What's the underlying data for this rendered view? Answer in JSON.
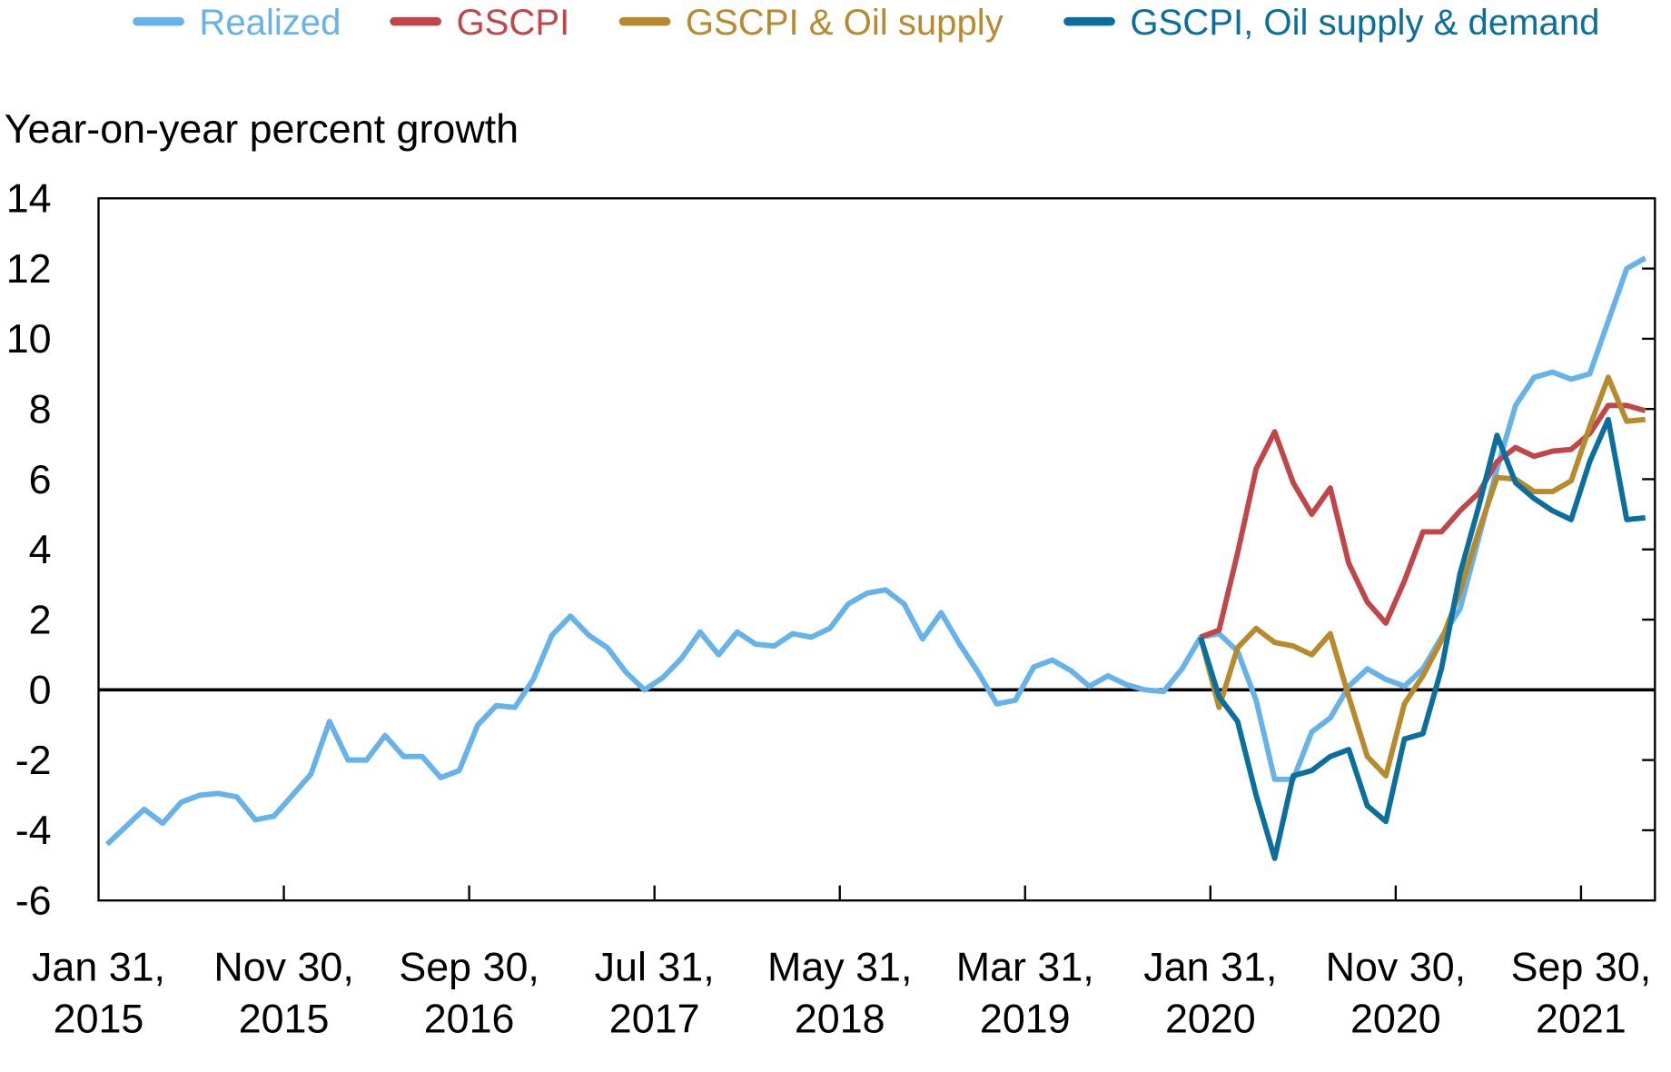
{
  "chart_data": {
    "type": "line",
    "ylabel": "Year-on-year percent growth",
    "ylim": [
      -6,
      14
    ],
    "yticks": [
      "14",
      "12",
      "10",
      "8",
      "6",
      "4",
      "2",
      "0",
      "-2",
      "-4",
      "-6"
    ],
    "xtick_labels": [
      [
        "Jan 31,",
        "2015"
      ],
      [
        "Nov 30,",
        "2015"
      ],
      [
        "Sep 30,",
        "2016"
      ],
      [
        "Jul 31,",
        "2017"
      ],
      [
        "May 31,",
        "2018"
      ],
      [
        "Mar 31,",
        "2019"
      ],
      [
        "Jan 31,",
        "2020"
      ],
      [
        "Nov 30,",
        "2020"
      ],
      [
        "Sep 30,",
        "2021"
      ]
    ],
    "legend_position": "top",
    "grid": false,
    "x": [
      "2015-01",
      "2015-02",
      "2015-03",
      "2015-04",
      "2015-05",
      "2015-06",
      "2015-07",
      "2015-08",
      "2015-09",
      "2015-10",
      "2015-11",
      "2015-12",
      "2016-01",
      "2016-02",
      "2016-03",
      "2016-04",
      "2016-05",
      "2016-06",
      "2016-07",
      "2016-08",
      "2016-09",
      "2016-10",
      "2016-11",
      "2016-12",
      "2017-01",
      "2017-02",
      "2017-03",
      "2017-04",
      "2017-05",
      "2017-06",
      "2017-07",
      "2017-08",
      "2017-09",
      "2017-10",
      "2017-11",
      "2017-12",
      "2018-01",
      "2018-02",
      "2018-03",
      "2018-04",
      "2018-05",
      "2018-06",
      "2018-07",
      "2018-08",
      "2018-09",
      "2018-10",
      "2018-11",
      "2018-12",
      "2019-01",
      "2019-02",
      "2019-03",
      "2019-04",
      "2019-05",
      "2019-06",
      "2019-07",
      "2019-08",
      "2019-09",
      "2019-10",
      "2019-11",
      "2019-12",
      "2020-01",
      "2020-02",
      "2020-03",
      "2020-04",
      "2020-05",
      "2020-06",
      "2020-07",
      "2020-08",
      "2020-09",
      "2020-10",
      "2020-11",
      "2020-12",
      "2021-01",
      "2021-02",
      "2021-03",
      "2021-04",
      "2021-05",
      "2021-06",
      "2021-07",
      "2021-08",
      "2021-09",
      "2021-10",
      "2021-11",
      "2021-12"
    ],
    "series": [
      {
        "name": "Realized",
        "color": "#66b2ea",
        "values": [
          -4.4,
          -3.9,
          -3.4,
          -3.8,
          -3.2,
          -3.0,
          -2.95,
          -3.05,
          -3.7,
          -3.6,
          -3.0,
          -2.4,
          -0.9,
          -2.0,
          -2.0,
          -1.3,
          -1.9,
          -1.9,
          -2.5,
          -2.3,
          -1.0,
          -0.45,
          -0.5,
          0.3,
          1.55,
          2.1,
          1.55,
          1.2,
          0.5,
          0.0,
          0.35,
          0.9,
          1.65,
          1.0,
          1.65,
          1.3,
          1.25,
          1.6,
          1.5,
          1.75,
          2.45,
          2.75,
          2.85,
          2.45,
          1.45,
          2.2,
          1.3,
          0.5,
          -0.4,
          -0.3,
          0.65,
          0.85,
          0.55,
          0.1,
          0.4,
          0.15,
          0.0,
          -0.05,
          0.6,
          1.5,
          1.6,
          1.1,
          -0.3,
          -2.55,
          -2.55,
          -1.2,
          -0.8,
          0.1,
          0.6,
          0.3,
          0.1,
          0.6,
          1.5,
          2.3,
          4.3,
          6.3,
          8.1,
          8.9,
          9.05,
          8.85,
          9.0,
          10.5,
          12.0,
          12.3
        ]
      },
      {
        "name": "GSCPI",
        "color": "#c0464a",
        "values": [
          null,
          null,
          null,
          null,
          null,
          null,
          null,
          null,
          null,
          null,
          null,
          null,
          null,
          null,
          null,
          null,
          null,
          null,
          null,
          null,
          null,
          null,
          null,
          null,
          null,
          null,
          null,
          null,
          null,
          null,
          null,
          null,
          null,
          null,
          null,
          null,
          null,
          null,
          null,
          null,
          null,
          null,
          null,
          null,
          null,
          null,
          null,
          null,
          null,
          null,
          null,
          null,
          null,
          null,
          null,
          null,
          null,
          null,
          null,
          1.5,
          1.7,
          3.9,
          6.3,
          7.35,
          5.9,
          5.0,
          5.75,
          3.6,
          2.5,
          1.9,
          3.1,
          4.5,
          4.5,
          5.1,
          5.6,
          6.5,
          6.9,
          6.65,
          6.8,
          6.85,
          7.3,
          8.1,
          8.1,
          7.95
        ]
      },
      {
        "name": "GSCPI & Oil supply",
        "color": "#b88a2e",
        "values": [
          null,
          null,
          null,
          null,
          null,
          null,
          null,
          null,
          null,
          null,
          null,
          null,
          null,
          null,
          null,
          null,
          null,
          null,
          null,
          null,
          null,
          null,
          null,
          null,
          null,
          null,
          null,
          null,
          null,
          null,
          null,
          null,
          null,
          null,
          null,
          null,
          null,
          null,
          null,
          null,
          null,
          null,
          null,
          null,
          null,
          null,
          null,
          null,
          null,
          null,
          null,
          null,
          null,
          null,
          null,
          null,
          null,
          null,
          null,
          1.5,
          -0.5,
          1.2,
          1.75,
          1.35,
          1.25,
          1.0,
          1.6,
          -0.2,
          -1.9,
          -2.45,
          -0.4,
          0.4,
          1.4,
          2.8,
          4.5,
          6.05,
          6.0,
          5.65,
          5.65,
          5.95,
          7.5,
          8.9,
          7.65,
          7.7
        ]
      },
      {
        "name": "GSCPI, Oil supply & demand",
        "color": "#0a6f9c",
        "values": [
          null,
          null,
          null,
          null,
          null,
          null,
          null,
          null,
          null,
          null,
          null,
          null,
          null,
          null,
          null,
          null,
          null,
          null,
          null,
          null,
          null,
          null,
          null,
          null,
          null,
          null,
          null,
          null,
          null,
          null,
          null,
          null,
          null,
          null,
          null,
          null,
          null,
          null,
          null,
          null,
          null,
          null,
          null,
          null,
          null,
          null,
          null,
          null,
          null,
          null,
          null,
          null,
          null,
          null,
          null,
          null,
          null,
          null,
          null,
          1.5,
          -0.2,
          -0.9,
          -3.0,
          -4.8,
          -2.45,
          -2.3,
          -1.9,
          -1.7,
          -3.3,
          -3.75,
          -1.4,
          -1.25,
          0.6,
          3.3,
          5.2,
          7.25,
          5.9,
          5.45,
          5.1,
          4.85,
          6.5,
          7.7,
          4.85,
          4.9
        ]
      }
    ]
  }
}
